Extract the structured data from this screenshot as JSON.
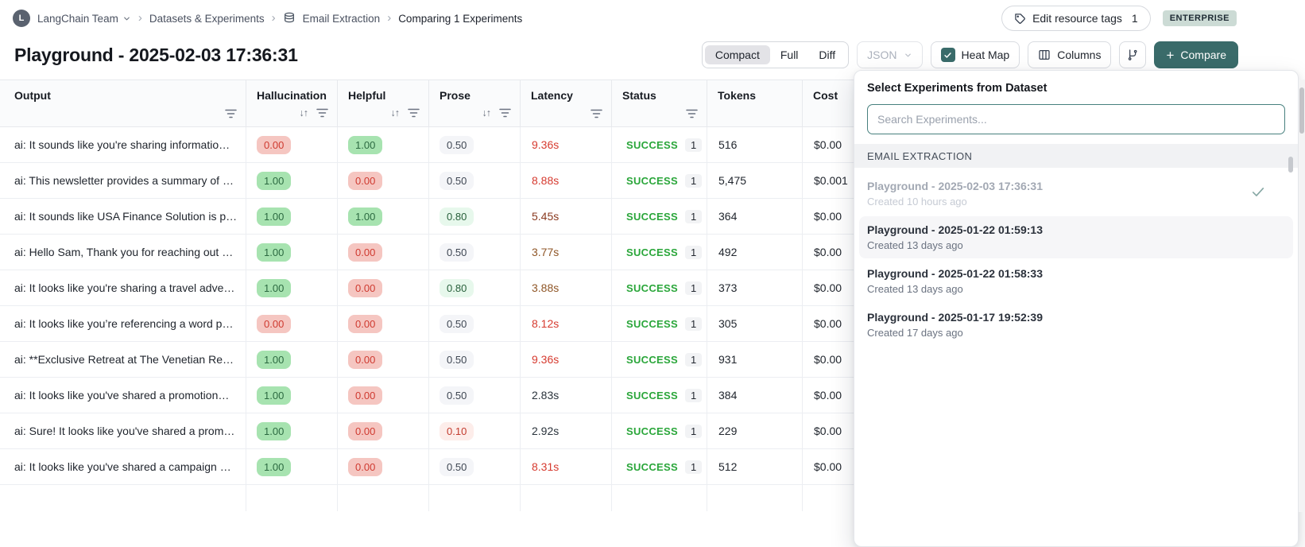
{
  "breadcrumb": {
    "avatar_letter": "L",
    "team_name": "LangChain Team",
    "crumbs": [
      "Datasets & Experiments",
      "Email Extraction",
      "Comparing 1 Experiments"
    ]
  },
  "topbar": {
    "edit_tags_label": "Edit resource tags",
    "edit_tags_count": "1",
    "plan_badge": "ENTERPRISE"
  },
  "page": {
    "title": "Playground - 2025-02-03 17:36:31"
  },
  "toolbar": {
    "view_modes": [
      "Compact",
      "Full",
      "Diff"
    ],
    "active_view": "Compact",
    "json_label": "JSON",
    "heat_map_label": "Heat Map",
    "heat_map_checked": true,
    "columns_label": "Columns",
    "compare_label": "Compare"
  },
  "table": {
    "columns": [
      {
        "label": "Output",
        "sort": false,
        "filter": true
      },
      {
        "label": "Hallucination",
        "sort": true,
        "filter": true
      },
      {
        "label": "Helpful",
        "sort": true,
        "filter": true
      },
      {
        "label": "Prose",
        "sort": true,
        "filter": true
      },
      {
        "label": "Latency",
        "sort": false,
        "filter": true
      },
      {
        "label": "Status",
        "sort": false,
        "filter": true
      },
      {
        "label": "Tokens",
        "sort": false,
        "filter": false
      },
      {
        "label": "Cost",
        "sort": false,
        "filter": false
      }
    ],
    "rows": [
      {
        "output": "ai: It sounds like you're sharing informatio…",
        "hallucination": "0.00",
        "hallucination_color": "red",
        "helpful": "1.00",
        "helpful_color": "green",
        "prose": "0.50",
        "prose_color": "neutral",
        "latency": "9.36s",
        "latency_color": "red",
        "status": "SUCCESS",
        "run_count": "1",
        "tokens": "516",
        "cost": "$0.00"
      },
      {
        "output": "ai: This newsletter provides a summary of …",
        "hallucination": "1.00",
        "hallucination_color": "green",
        "helpful": "0.00",
        "helpful_color": "red",
        "prose": "0.50",
        "prose_color": "neutral",
        "latency": "8.88s",
        "latency_color": "red",
        "status": "SUCCESS",
        "run_count": "1",
        "tokens": "5,475",
        "cost": "$0.001"
      },
      {
        "output": "ai: It sounds like USA Finance Solution is p…",
        "hallucination": "1.00",
        "hallucination_color": "green",
        "helpful": "1.00",
        "helpful_color": "green",
        "prose": "0.80",
        "prose_color": "green-light",
        "latency": "5.45s",
        "latency_color": "maroon",
        "status": "SUCCESS",
        "run_count": "1",
        "tokens": "364",
        "cost": "$0.00"
      },
      {
        "output": "ai: Hello Sam, Thank you for reaching out …",
        "hallucination": "1.00",
        "hallucination_color": "green",
        "helpful": "0.00",
        "helpful_color": "red",
        "prose": "0.50",
        "prose_color": "neutral",
        "latency": "3.77s",
        "latency_color": "amber",
        "status": "SUCCESS",
        "run_count": "1",
        "tokens": "492",
        "cost": "$0.00"
      },
      {
        "output": "ai: It looks like you're sharing a travel adve…",
        "hallucination": "1.00",
        "hallucination_color": "green",
        "helpful": "0.00",
        "helpful_color": "red",
        "prose": "0.80",
        "prose_color": "green-light",
        "latency": "3.88s",
        "latency_color": "amber",
        "status": "SUCCESS",
        "run_count": "1",
        "tokens": "373",
        "cost": "$0.00"
      },
      {
        "output": "ai: It looks like you’re referencing a word p…",
        "hallucination": "0.00",
        "hallucination_color": "red",
        "helpful": "0.00",
        "helpful_color": "red",
        "prose": "0.50",
        "prose_color": "neutral",
        "latency": "8.12s",
        "latency_color": "red",
        "status": "SUCCESS",
        "run_count": "1",
        "tokens": "305",
        "cost": "$0.00"
      },
      {
        "output": "ai: **Exclusive Retreat at The Venetian Re…",
        "hallucination": "1.00",
        "hallucination_color": "green",
        "helpful": "0.00",
        "helpful_color": "red",
        "prose": "0.50",
        "prose_color": "neutral",
        "latency": "9.36s",
        "latency_color": "red",
        "status": "SUCCESS",
        "run_count": "1",
        "tokens": "931",
        "cost": "$0.00"
      },
      {
        "output": "ai: It looks like you've shared a promotion…",
        "hallucination": "1.00",
        "hallucination_color": "green",
        "helpful": "0.00",
        "helpful_color": "red",
        "prose": "0.50",
        "prose_color": "neutral",
        "latency": "2.83s",
        "latency_color": "dark",
        "status": "SUCCESS",
        "run_count": "1",
        "tokens": "384",
        "cost": "$0.00"
      },
      {
        "output": "ai: Sure! It looks like you've shared a prom…",
        "hallucination": "1.00",
        "hallucination_color": "green",
        "helpful": "0.00",
        "helpful_color": "red",
        "prose": "0.10",
        "prose_color": "red-light",
        "latency": "2.92s",
        "latency_color": "dark",
        "status": "SUCCESS",
        "run_count": "1",
        "tokens": "229",
        "cost": "$0.00"
      },
      {
        "output": "ai: It looks like you've shared a campaign …",
        "hallucination": "1.00",
        "hallucination_color": "green",
        "helpful": "0.00",
        "helpful_color": "red",
        "prose": "0.50",
        "prose_color": "neutral",
        "latency": "8.31s",
        "latency_color": "red",
        "status": "SUCCESS",
        "run_count": "1",
        "tokens": "512",
        "cost": "$0.00"
      }
    ]
  },
  "experiment_picker": {
    "title": "Select Experiments from Dataset",
    "search_placeholder": "Search Experiments...",
    "section_label": "EMAIL EXTRACTION",
    "experiments": [
      {
        "name": "Playground - 2025-02-03 17:36:31",
        "created": "Created 10 hours ago",
        "state": "selected"
      },
      {
        "name": "Playground - 2025-01-22 01:59:13",
        "created": "Created 13 days ago",
        "state": "highlighted"
      },
      {
        "name": "Playground - 2025-01-22 01:58:33",
        "created": "Created 13 days ago",
        "state": "normal"
      },
      {
        "name": "Playground - 2025-01-17 19:52:39",
        "created": "Created 17 days ago",
        "state": "normal"
      }
    ]
  },
  "colors": {
    "accent_teal": "#3a6b6a",
    "success_green": "#2aa63a",
    "badge_red_bg": "#f5c6c1",
    "badge_red_text": "#cf3a30",
    "badge_green_bg": "#a7e3b0",
    "badge_green_text": "#2c6a41",
    "badge_neutral_bg": "#f4f5f8",
    "badge_green_light_bg": "#e7f8ec",
    "badge_red_light_bg": "#fdedea",
    "latency_red": "#d63a2f",
    "latency_maroon": "#8a3a20",
    "latency_amber": "#8f5627",
    "latency_dark": "#2a333c",
    "enterprise_badge_bg": "#ccdbd5"
  }
}
